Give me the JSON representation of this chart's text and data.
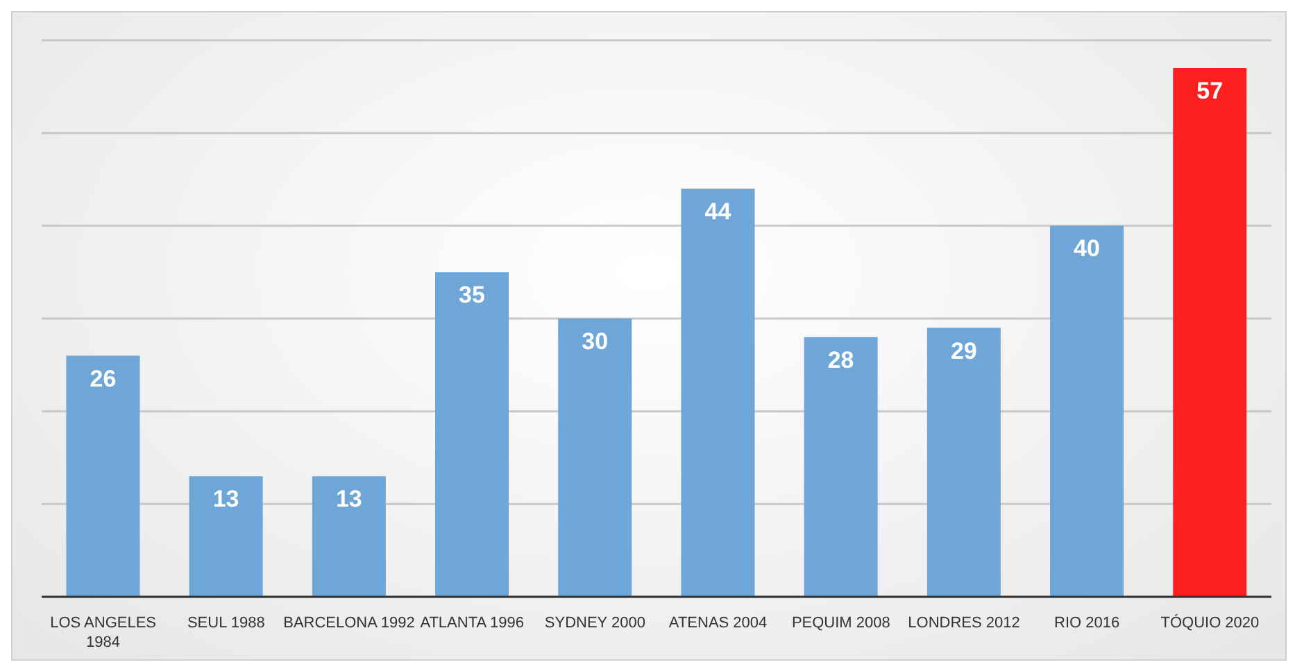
{
  "chart_data": {
    "type": "bar",
    "categories": [
      "LOS ANGELES 1984",
      "SEUL 1988",
      "BARCELONA 1992",
      "ATLANTA 1996",
      "SYDNEY 2000",
      "ATENAS 2004",
      "PEQUIM 2008",
      "LONDRES 2012",
      "RIO 2016",
      "TÓQUIO 2020"
    ],
    "values": [
      26,
      13,
      13,
      35,
      30,
      44,
      28,
      29,
      40,
      57
    ],
    "colors": [
      "#6fa6d8",
      "#6fa6d8",
      "#6fa6d8",
      "#6fa6d8",
      "#6fa6d8",
      "#6fa6d8",
      "#6fa6d8",
      "#6fa6d8",
      "#6fa6d8",
      "#fc2020"
    ],
    "ylim": [
      0,
      60
    ],
    "yticks": [
      {
        "value": 0,
        "label": null
      },
      {
        "value": 10,
        "label": null
      },
      {
        "value": 20,
        "label": null
      },
      {
        "value": 30,
        "label": null
      },
      {
        "value": 40,
        "label": null
      },
      {
        "value": 50,
        "label": null
      },
      {
        "value": 60,
        "label": null
      }
    ],
    "grid": "y",
    "tick_labels": "x",
    "data_labels": true
  }
}
